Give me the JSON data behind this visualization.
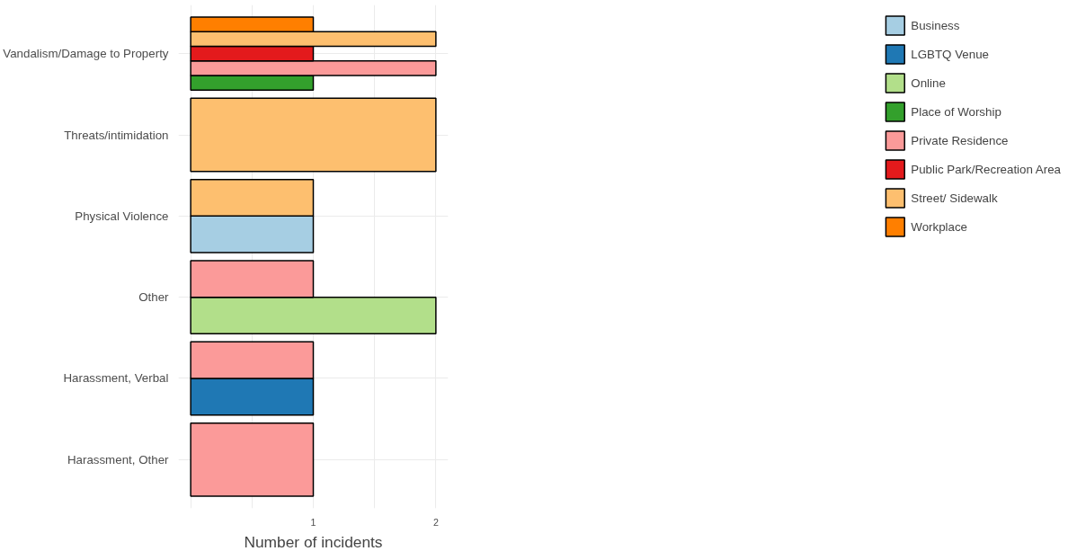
{
  "chart_data": {
    "type": "bar",
    "orientation": "horizontal",
    "xlabel": "Number of incidents",
    "categories": [
      "Vandalism/Damage to Property",
      "Threats/intimidation",
      "Physical Violence",
      "Other",
      "Harassment, Verbal",
      "Harassment, Other"
    ],
    "series": [
      {
        "name": "Business",
        "color": "#a6cee3",
        "values": [
          null,
          null,
          1,
          null,
          null,
          null
        ]
      },
      {
        "name": "LGBTQ Venue",
        "color": "#1f78b4",
        "values": [
          null,
          null,
          null,
          null,
          1,
          null
        ]
      },
      {
        "name": "Online",
        "color": "#b2df8a",
        "values": [
          null,
          null,
          null,
          2,
          null,
          null
        ]
      },
      {
        "name": "Place of Worship",
        "color": "#33a02c",
        "values": [
          1,
          null,
          null,
          null,
          null,
          null
        ]
      },
      {
        "name": "Private Residence",
        "color": "#fb9a99",
        "values": [
          2,
          null,
          null,
          1,
          1,
          1
        ]
      },
      {
        "name": "Public Park/Recreation Area",
        "color": "#e31a1c",
        "values": [
          1,
          null,
          null,
          null,
          null,
          null
        ]
      },
      {
        "name": "Street/ Sidewalk",
        "color": "#fdbf6f",
        "values": [
          2,
          2,
          1,
          null,
          null,
          null
        ]
      },
      {
        "name": "Workplace",
        "color": "#ff7f00",
        "values": [
          1,
          null,
          null,
          null,
          null,
          null
        ]
      }
    ],
    "xlim": [
      -0.1,
      2.1
    ],
    "xticks": [
      {
        "value": 0,
        "label": null
      },
      {
        "value": 0.5,
        "label": null
      },
      1,
      {
        "value": 1.5,
        "label": null
      },
      2
    ],
    "grid": true,
    "legend": "right"
  }
}
